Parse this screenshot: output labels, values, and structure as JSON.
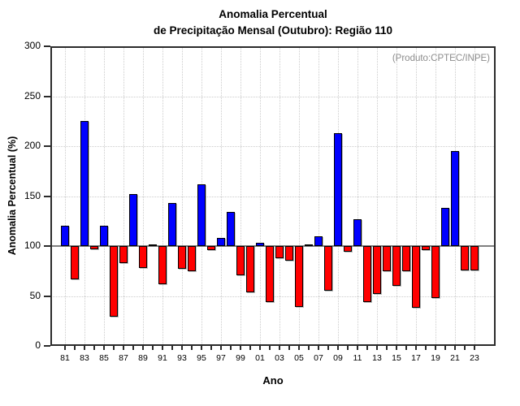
{
  "chart_data": {
    "type": "bar",
    "title": "Anomalia Percentual de Precipitação Mensal (Outubro): Região 110",
    "title_line1": "Anomalia Percentual",
    "title_line2": "de Precipitação Mensal (Outubro): Região 110",
    "annotation": "(Produto:CPTEC/INPE)",
    "xlabel": "Ano",
    "ylabel": "Anomalia Percentual (%)",
    "ylim": [
      0,
      300
    ],
    "yticks": [
      0,
      50,
      100,
      150,
      200,
      250,
      300
    ],
    "baseline": 100,
    "grid": "dotted gray gridlines at 50-unit y steps and at labeled x ticks; solid gray line at y=100",
    "legend_position": "none",
    "x_tick_labels": [
      "81",
      "83",
      "85",
      "87",
      "89",
      "91",
      "93",
      "95",
      "97",
      "99",
      "01",
      "03",
      "05",
      "07",
      "09",
      "11",
      "13",
      "15",
      "17",
      "19",
      "21",
      "23"
    ],
    "years": [
      1981,
      1982,
      1983,
      1984,
      1985,
      1986,
      1987,
      1988,
      1989,
      1990,
      1991,
      1992,
      1993,
      1994,
      1995,
      1996,
      1997,
      1998,
      1999,
      2000,
      2001,
      2002,
      2003,
      2004,
      2005,
      2006,
      2007,
      2008,
      2009,
      2010,
      2011,
      2012,
      2013,
      2014,
      2015,
      2016,
      2017,
      2018,
      2019,
      2020,
      2021,
      2022,
      2023
    ],
    "values": [
      120,
      67,
      225,
      97,
      120,
      29,
      83,
      152,
      78,
      102,
      62,
      143,
      77,
      75,
      162,
      96,
      108,
      134,
      71,
      54,
      103,
      44,
      88,
      85,
      39,
      102,
      110,
      55,
      213,
      94,
      127,
      44,
      52,
      75,
      60,
      75,
      38,
      96,
      48,
      138,
      195,
      76,
      76
    ],
    "colors": {
      "above_baseline": "#0000ff",
      "below_baseline": "#ff0000",
      "baseline_line": "#808080",
      "grid": "#cccccc",
      "axis": "#2b2b2b",
      "annotation": "#8c8c8c",
      "title": "#000000"
    }
  }
}
